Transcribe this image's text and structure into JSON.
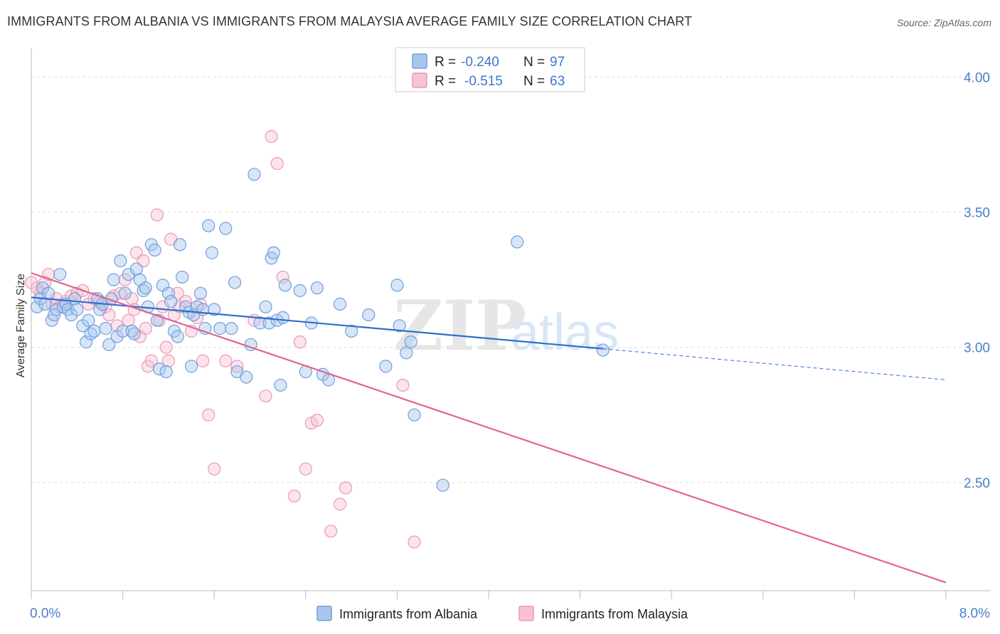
{
  "title": "IMMIGRANTS FROM ALBANIA VS IMMIGRANTS FROM MALAYSIA AVERAGE FAMILY SIZE CORRELATION CHART",
  "source": "Source: ZipAtlas.com",
  "watermark": {
    "zip": "ZIP",
    "atlas": "atlas"
  },
  "colors": {
    "albania": "#6fa0dd",
    "albania_fill": "#a9c6ee",
    "albania_line": "#2d6fcb",
    "malaysia": "#ec98b4",
    "malaysia_fill": "#f7c3d4",
    "malaysia_line": "#e0638e",
    "tick_text": "#4a7ec7",
    "grid": "#dddddd"
  },
  "legend": {
    "albania": {
      "r_label": "R = ",
      "r_value": "-0.240",
      "n_label": "N = ",
      "n_value": "97"
    },
    "malaysia": {
      "r_label": "R = ",
      "r_value": "-0.515",
      "n_label": "N = ",
      "n_value": "63"
    }
  },
  "chart_data": {
    "type": "scatter",
    "title": "IMMIGRANTS FROM ALBANIA VS IMMIGRANTS FROM MALAYSIA AVERAGE FAMILY SIZE CORRELATION CHART",
    "xlabel": "",
    "ylabel": "Average Family Size",
    "xlim": [
      0,
      8
    ],
    "ylim": [
      2.1,
      4.08
    ],
    "x_tick_labels": [
      "0.0%",
      "8.0%"
    ],
    "x_ticks": [
      0,
      8
    ],
    "x_minor_ticks": [
      0.8,
      1.6,
      2.4,
      3.2,
      4.0,
      4.8,
      5.6,
      6.4,
      7.2
    ],
    "y_ticks": [
      2.5,
      3.0,
      3.5,
      4.0
    ],
    "y_tick_labels": [
      "2.50",
      "3.00",
      "3.50",
      "4.00"
    ],
    "grid": "horizontal dashed",
    "legend_position": "top-center",
    "series": [
      {
        "name": "Immigrants from Albania",
        "color": "#6fa0dd",
        "trend": {
          "x0": 0.0,
          "y0": 3.185,
          "x1": 5.0,
          "y1": 2.995,
          "dash_to_x": 8.0,
          "dash_to_y": 2.88
        },
        "points": [
          [
            0.05,
            3.15
          ],
          [
            0.08,
            3.18
          ],
          [
            0.1,
            3.22
          ],
          [
            0.12,
            3.16
          ],
          [
            0.15,
            3.2
          ],
          [
            0.18,
            3.1
          ],
          [
            0.2,
            3.12
          ],
          [
            0.22,
            3.14
          ],
          [
            0.25,
            3.27
          ],
          [
            0.28,
            3.15
          ],
          [
            0.3,
            3.16
          ],
          [
            0.32,
            3.14
          ],
          [
            0.35,
            3.12
          ],
          [
            0.38,
            3.18
          ],
          [
            0.4,
            3.14
          ],
          [
            0.45,
            3.08
          ],
          [
            0.48,
            3.02
          ],
          [
            0.5,
            3.1
          ],
          [
            0.52,
            3.05
          ],
          [
            0.55,
            3.06
          ],
          [
            0.58,
            3.18
          ],
          [
            0.6,
            3.14
          ],
          [
            0.62,
            3.16
          ],
          [
            0.65,
            3.07
          ],
          [
            0.68,
            3.01
          ],
          [
            0.7,
            3.18
          ],
          [
            0.72,
            3.25
          ],
          [
            0.75,
            3.04
          ],
          [
            0.78,
            3.32
          ],
          [
            0.8,
            3.06
          ],
          [
            0.82,
            3.2
          ],
          [
            0.85,
            3.27
          ],
          [
            0.88,
            3.06
          ],
          [
            0.9,
            3.05
          ],
          [
            0.92,
            3.29
          ],
          [
            0.95,
            3.25
          ],
          [
            0.98,
            3.21
          ],
          [
            1.0,
            3.22
          ],
          [
            1.02,
            3.15
          ],
          [
            1.05,
            3.38
          ],
          [
            1.08,
            3.36
          ],
          [
            1.1,
            3.1
          ],
          [
            1.12,
            2.92
          ],
          [
            1.15,
            3.23
          ],
          [
            1.18,
            2.91
          ],
          [
            1.2,
            3.2
          ],
          [
            1.22,
            3.17
          ],
          [
            1.25,
            3.06
          ],
          [
            1.28,
            3.04
          ],
          [
            1.3,
            3.38
          ],
          [
            1.32,
            3.26
          ],
          [
            1.35,
            3.15
          ],
          [
            1.38,
            3.13
          ],
          [
            1.4,
            2.93
          ],
          [
            1.42,
            3.12
          ],
          [
            1.45,
            3.15
          ],
          [
            1.48,
            3.2
          ],
          [
            1.5,
            3.14
          ],
          [
            1.52,
            3.07
          ],
          [
            1.55,
            3.45
          ],
          [
            1.58,
            3.35
          ],
          [
            1.6,
            3.14
          ],
          [
            1.65,
            3.07
          ],
          [
            1.7,
            3.44
          ],
          [
            1.75,
            3.07
          ],
          [
            1.78,
            3.24
          ],
          [
            1.8,
            2.91
          ],
          [
            1.88,
            2.89
          ],
          [
            1.92,
            3.01
          ],
          [
            1.95,
            3.64
          ],
          [
            2.0,
            3.09
          ],
          [
            2.05,
            3.15
          ],
          [
            2.08,
            3.09
          ],
          [
            2.1,
            3.33
          ],
          [
            2.12,
            3.35
          ],
          [
            2.15,
            3.1
          ],
          [
            2.18,
            2.86
          ],
          [
            2.2,
            3.11
          ],
          [
            2.22,
            3.23
          ],
          [
            2.35,
            3.21
          ],
          [
            2.4,
            2.91
          ],
          [
            2.45,
            3.09
          ],
          [
            2.5,
            3.22
          ],
          [
            2.55,
            2.9
          ],
          [
            2.6,
            2.88
          ],
          [
            2.7,
            3.16
          ],
          [
            2.8,
            3.06
          ],
          [
            2.95,
            3.12
          ],
          [
            3.1,
            2.93
          ],
          [
            3.2,
            3.23
          ],
          [
            3.22,
            3.08
          ],
          [
            3.28,
            2.98
          ],
          [
            3.32,
            3.02
          ],
          [
            3.35,
            2.75
          ],
          [
            3.6,
            2.49
          ],
          [
            4.25,
            3.39
          ],
          [
            5.0,
            2.99
          ]
        ]
      },
      {
        "name": "Immigrants from Malaysia",
        "color": "#ec98b4",
        "trend": {
          "x0": 0.0,
          "y0": 3.275,
          "x1": 8.0,
          "y1": 2.13
        },
        "points": [
          [
            0.0,
            3.24
          ],
          [
            0.05,
            3.22
          ],
          [
            0.08,
            3.2
          ],
          [
            0.12,
            3.24
          ],
          [
            0.15,
            3.27
          ],
          [
            0.18,
            3.16
          ],
          [
            0.22,
            3.18
          ],
          [
            0.25,
            3.15
          ],
          [
            0.3,
            3.17
          ],
          [
            0.35,
            3.19
          ],
          [
            0.4,
            3.2
          ],
          [
            0.45,
            3.21
          ],
          [
            0.5,
            3.16
          ],
          [
            0.55,
            3.18
          ],
          [
            0.6,
            3.17
          ],
          [
            0.65,
            3.15
          ],
          [
            0.68,
            3.12
          ],
          [
            0.72,
            3.19
          ],
          [
            0.75,
            3.08
          ],
          [
            0.78,
            3.2
          ],
          [
            0.82,
            3.25
          ],
          [
            0.85,
            3.1
          ],
          [
            0.88,
            3.18
          ],
          [
            0.9,
            3.14
          ],
          [
            0.92,
            3.35
          ],
          [
            0.95,
            3.04
          ],
          [
            0.98,
            3.32
          ],
          [
            1.0,
            3.07
          ],
          [
            1.02,
            2.93
          ],
          [
            1.05,
            2.95
          ],
          [
            1.1,
            3.49
          ],
          [
            1.12,
            3.1
          ],
          [
            1.15,
            3.15
          ],
          [
            1.18,
            3.0
          ],
          [
            1.2,
            2.95
          ],
          [
            1.22,
            3.4
          ],
          [
            1.25,
            3.12
          ],
          [
            1.28,
            3.2
          ],
          [
            1.3,
            3.15
          ],
          [
            1.35,
            3.17
          ],
          [
            1.4,
            3.06
          ],
          [
            1.45,
            3.11
          ],
          [
            1.48,
            3.16
          ],
          [
            1.5,
            2.95
          ],
          [
            1.55,
            2.75
          ],
          [
            1.6,
            2.55
          ],
          [
            1.7,
            2.95
          ],
          [
            1.8,
            2.93
          ],
          [
            1.95,
            3.1
          ],
          [
            2.05,
            2.82
          ],
          [
            2.1,
            3.78
          ],
          [
            2.15,
            3.68
          ],
          [
            2.2,
            3.26
          ],
          [
            2.3,
            2.45
          ],
          [
            2.35,
            3.02
          ],
          [
            2.4,
            2.55
          ],
          [
            2.45,
            2.72
          ],
          [
            2.5,
            2.73
          ],
          [
            2.62,
            2.32
          ],
          [
            2.7,
            2.42
          ],
          [
            2.75,
            2.48
          ],
          [
            3.25,
            2.86
          ],
          [
            3.35,
            2.28
          ]
        ]
      }
    ]
  }
}
